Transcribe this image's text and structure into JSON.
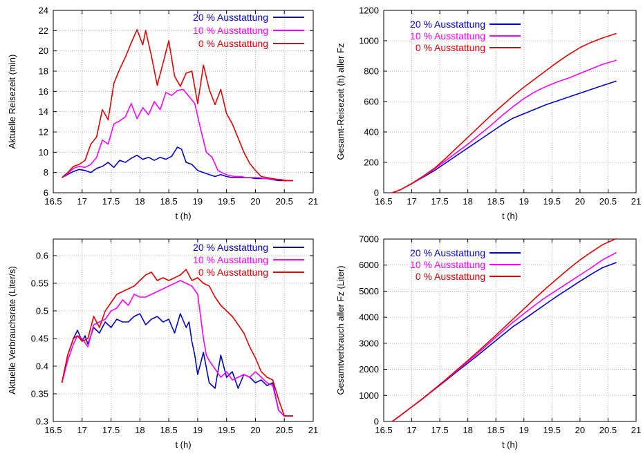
{
  "colors": {
    "s20": "#0000c8",
    "s10": "#ff00ff",
    "s0": "#e00000",
    "grid": "#9a9a9a",
    "axis": "#000000"
  },
  "legend_labels": [
    "20 % Ausstattung",
    "10 % Ausstattung",
    "0 % Ausstattung"
  ],
  "chart_data": [
    {
      "type": "line",
      "xlabel": "t (h)",
      "ylabel": "Aktuelle Reisezeit (min)",
      "xlim": [
        16.5,
        21
      ],
      "ylim": [
        6,
        24
      ],
      "xticks": [
        16.5,
        17,
        17.5,
        18,
        18.5,
        19,
        19.5,
        20,
        20.5,
        21
      ],
      "xtick_labels": [
        "16.5",
        "17",
        "17.5",
        "18",
        "18.5",
        "19",
        "19.5",
        "20",
        "20.5",
        "21"
      ],
      "yticks": [
        6,
        8,
        10,
        12,
        14,
        16,
        18,
        20,
        22,
        24
      ],
      "ytick_labels": [
        "6",
        "8",
        "10",
        "12",
        "14",
        "16",
        "18",
        "20",
        "22",
        "24"
      ],
      "grid": true,
      "legend_position": "top-right",
      "series": [
        {
          "name": "20 % Ausstattung",
          "color_key": "s20",
          "x": [
            16.65,
            16.75,
            16.85,
            16.95,
            17.05,
            17.15,
            17.25,
            17.35,
            17.45,
            17.55,
            17.65,
            17.75,
            17.85,
            17.95,
            18.05,
            18.15,
            18.25,
            18.35,
            18.45,
            18.55,
            18.65,
            18.72,
            18.8,
            18.9,
            19.0,
            19.1,
            19.2,
            19.3,
            19.4,
            19.5,
            19.6,
            19.7,
            19.8,
            19.9,
            20.0,
            20.1,
            20.2,
            20.3,
            20.4,
            20.5,
            20.65
          ],
          "y": [
            7.5,
            7.8,
            8.1,
            8.3,
            8.2,
            8.0,
            8.4,
            8.6,
            9.0,
            8.5,
            9.2,
            9.0,
            9.4,
            9.7,
            9.3,
            9.5,
            9.2,
            9.5,
            9.3,
            9.6,
            10.5,
            10.3,
            9.0,
            8.8,
            8.2,
            8.0,
            7.8,
            7.6,
            7.8,
            7.6,
            7.5,
            7.5,
            7.5,
            7.5,
            7.4,
            7.4,
            7.4,
            7.3,
            7.2,
            7.2,
            7.2
          ]
        },
        {
          "name": "10 % Ausstattung",
          "color_key": "s10",
          "x": [
            16.65,
            16.75,
            16.85,
            16.95,
            17.05,
            17.15,
            17.25,
            17.35,
            17.45,
            17.55,
            17.65,
            17.75,
            17.85,
            17.95,
            18.05,
            18.15,
            18.25,
            18.35,
            18.45,
            18.55,
            18.65,
            18.75,
            18.85,
            18.95,
            19.05,
            19.15,
            19.25,
            19.35,
            19.45,
            19.55,
            19.65,
            19.75,
            19.85,
            19.95,
            20.05,
            20.15,
            20.25,
            20.35,
            20.45,
            20.55,
            20.65
          ],
          "y": [
            7.5,
            7.9,
            8.4,
            8.6,
            8.5,
            8.8,
            9.5,
            11.2,
            10.8,
            12.8,
            13.1,
            13.5,
            14.8,
            13.3,
            14.4,
            13.7,
            15.0,
            14.2,
            15.9,
            15.6,
            16.1,
            16.2,
            15.5,
            14.8,
            12.3,
            10.0,
            9.5,
            8.2,
            7.9,
            7.7,
            7.6,
            7.6,
            7.5,
            7.5,
            7.5,
            7.4,
            7.4,
            7.3,
            7.3,
            7.2,
            7.2
          ]
        },
        {
          "name": "0 % Ausstattung",
          "color_key": "s0",
          "x": [
            16.65,
            16.75,
            16.85,
            16.95,
            17.05,
            17.15,
            17.25,
            17.35,
            17.45,
            17.55,
            17.65,
            17.75,
            17.85,
            17.95,
            18.05,
            18.1,
            18.2,
            18.3,
            18.4,
            18.5,
            18.6,
            18.7,
            18.8,
            18.9,
            19.0,
            19.1,
            19.2,
            19.3,
            19.4,
            19.5,
            19.6,
            19.7,
            19.8,
            19.9,
            20.0,
            20.1,
            20.2,
            20.3,
            20.4,
            20.5,
            20.65
          ],
          "y": [
            7.5,
            8.0,
            8.6,
            8.8,
            9.2,
            10.8,
            11.5,
            14.2,
            13.2,
            16.8,
            18.2,
            19.4,
            20.8,
            22.1,
            20.6,
            22.0,
            19.5,
            16.6,
            18.8,
            21.0,
            17.5,
            16.5,
            17.8,
            18.0,
            14.8,
            18.6,
            16.2,
            14.7,
            16.2,
            13.8,
            12.8,
            11.4,
            10.0,
            8.9,
            8.2,
            7.6,
            7.5,
            7.4,
            7.3,
            7.2,
            7.2
          ]
        }
      ]
    },
    {
      "type": "line",
      "xlabel": "t (h)",
      "ylabel": "Gesamt-Reisezeit (h) aller Fz",
      "xlim": [
        16.5,
        21
      ],
      "ylim": [
        0,
        1200
      ],
      "xticks": [
        16.5,
        17,
        17.5,
        18,
        18.5,
        19,
        19.5,
        20,
        20.5,
        21
      ],
      "xtick_labels": [
        "16.5",
        "17",
        "17.5",
        "18",
        "18.5",
        "19",
        "19.5",
        "20",
        "20.5",
        "21"
      ],
      "yticks": [
        0,
        200,
        400,
        600,
        800,
        1000,
        1200
      ],
      "ytick_labels": [
        "0",
        "200",
        "400",
        "600",
        "800",
        "1000",
        "1200"
      ],
      "grid": true,
      "legend_position": "top-left",
      "series": [
        {
          "name": "20 % Ausstattung",
          "color_key": "s20",
          "x": [
            16.65,
            16.8,
            17.0,
            17.2,
            17.4,
            17.6,
            17.8,
            18.0,
            18.2,
            18.4,
            18.6,
            18.8,
            19.0,
            19.2,
            19.4,
            19.6,
            19.8,
            20.0,
            20.2,
            20.4,
            20.65
          ],
          "y": [
            0,
            20,
            60,
            102,
            145,
            195,
            245,
            295,
            345,
            395,
            445,
            490,
            520,
            550,
            580,
            605,
            630,
            655,
            680,
            705,
            735
          ]
        },
        {
          "name": "10 % Ausstattung",
          "color_key": "s10",
          "x": [
            16.65,
            16.8,
            17.0,
            17.2,
            17.4,
            17.6,
            17.8,
            18.0,
            18.2,
            18.4,
            18.6,
            18.8,
            19.0,
            19.2,
            19.4,
            19.6,
            19.8,
            20.0,
            20.2,
            20.4,
            20.65
          ],
          "y": [
            0,
            20,
            60,
            105,
            155,
            210,
            265,
            320,
            380,
            440,
            505,
            565,
            620,
            665,
            700,
            730,
            755,
            785,
            815,
            845,
            872
          ]
        },
        {
          "name": "0 % Ausstattung",
          "color_key": "s0",
          "x": [
            16.65,
            16.8,
            17.0,
            17.2,
            17.4,
            17.6,
            17.8,
            18.0,
            18.2,
            18.4,
            18.6,
            18.8,
            19.0,
            19.2,
            19.4,
            19.6,
            19.8,
            20.0,
            20.2,
            20.4,
            20.65
          ],
          "y": [
            0,
            20,
            62,
            108,
            160,
            225,
            295,
            365,
            435,
            505,
            570,
            635,
            695,
            750,
            805,
            860,
            910,
            955,
            990,
            1018,
            1048
          ]
        }
      ]
    },
    {
      "type": "line",
      "xlabel": "t (h)",
      "ylabel": "Aktuelle Verbrauchsrate (Liter/s)",
      "xlim": [
        16.5,
        21
      ],
      "ylim": [
        0.3,
        0.63
      ],
      "xticks": [
        16.5,
        17,
        17.5,
        18,
        18.5,
        19,
        19.5,
        20,
        20.5,
        21
      ],
      "xtick_labels": [
        "16.5",
        "17",
        "17.5",
        "18",
        "18.5",
        "19",
        "19.5",
        "20",
        "20.5",
        "21"
      ],
      "yticks": [
        0.3,
        0.35,
        0.4,
        0.45,
        0.5,
        0.55,
        0.6
      ],
      "ytick_labels": [
        "0.3",
        "0.35",
        "0.4",
        "0.45",
        "0.5",
        "0.55",
        "0.6"
      ],
      "grid": true,
      "legend_position": "top-right",
      "series": [
        {
          "name": "20 % Ausstattung",
          "color_key": "s20",
          "x": [
            16.65,
            16.75,
            16.85,
            16.92,
            17.0,
            17.05,
            17.1,
            17.2,
            17.3,
            17.4,
            17.5,
            17.6,
            17.7,
            17.8,
            17.9,
            18.0,
            18.1,
            18.2,
            18.3,
            18.4,
            18.5,
            18.6,
            18.7,
            18.8,
            18.85,
            18.9,
            18.95,
            19.0,
            19.05,
            19.1,
            19.2,
            19.3,
            19.4,
            19.5,
            19.6,
            19.7,
            19.8,
            19.9,
            20.0,
            20.1,
            20.2,
            20.3,
            20.4,
            20.5,
            20.65
          ],
          "y": [
            0.37,
            0.42,
            0.45,
            0.465,
            0.445,
            0.455,
            0.44,
            0.47,
            0.46,
            0.48,
            0.47,
            0.485,
            0.48,
            0.48,
            0.49,
            0.495,
            0.475,
            0.485,
            0.49,
            0.48,
            0.485,
            0.46,
            0.495,
            0.47,
            0.48,
            0.445,
            0.42,
            0.385,
            0.405,
            0.425,
            0.37,
            0.36,
            0.42,
            0.38,
            0.39,
            0.36,
            0.385,
            0.38,
            0.37,
            0.375,
            0.365,
            0.37,
            0.32,
            0.31,
            0.31
          ]
        },
        {
          "name": "10 % Ausstattung",
          "color_key": "s10",
          "x": [
            16.65,
            16.75,
            16.85,
            16.92,
            17.0,
            17.1,
            17.2,
            17.3,
            17.4,
            17.5,
            17.6,
            17.7,
            17.8,
            17.9,
            18.0,
            18.1,
            18.2,
            18.3,
            18.4,
            18.5,
            18.6,
            18.7,
            18.8,
            18.9,
            19.0,
            19.05,
            19.1,
            19.15,
            19.2,
            19.3,
            19.4,
            19.5,
            19.6,
            19.7,
            19.8,
            19.9,
            20.0,
            20.1,
            20.2,
            20.3,
            20.4,
            20.5,
            20.65
          ],
          "y": [
            0.37,
            0.41,
            0.44,
            0.455,
            0.45,
            0.435,
            0.475,
            0.48,
            0.485,
            0.5,
            0.505,
            0.52,
            0.51,
            0.53,
            0.525,
            0.525,
            0.53,
            0.535,
            0.54,
            0.545,
            0.55,
            0.555,
            0.55,
            0.545,
            0.53,
            0.49,
            0.45,
            0.42,
            0.41,
            0.395,
            0.38,
            0.39,
            0.375,
            0.38,
            0.385,
            0.38,
            0.39,
            0.38,
            0.37,
            0.365,
            0.32,
            0.31,
            0.31
          ]
        },
        {
          "name": "0 % Ausstattung",
          "color_key": "s0",
          "x": [
            16.65,
            16.75,
            16.85,
            16.92,
            17.0,
            17.1,
            17.2,
            17.3,
            17.4,
            17.5,
            17.6,
            17.7,
            17.8,
            17.9,
            18.0,
            18.1,
            18.2,
            18.3,
            18.4,
            18.5,
            18.6,
            18.7,
            18.8,
            18.9,
            19.0,
            19.1,
            19.2,
            19.3,
            19.4,
            19.5,
            19.6,
            19.7,
            19.8,
            19.9,
            20.0,
            20.1,
            20.2,
            20.3,
            20.4,
            20.5,
            20.65
          ],
          "y": [
            0.37,
            0.42,
            0.45,
            0.455,
            0.445,
            0.45,
            0.49,
            0.47,
            0.5,
            0.515,
            0.53,
            0.535,
            0.54,
            0.545,
            0.555,
            0.565,
            0.57,
            0.555,
            0.56,
            0.555,
            0.56,
            0.565,
            0.575,
            0.555,
            0.56,
            0.55,
            0.545,
            0.525,
            0.51,
            0.5,
            0.49,
            0.475,
            0.46,
            0.435,
            0.415,
            0.39,
            0.38,
            0.375,
            0.34,
            0.31,
            0.31
          ]
        }
      ]
    },
    {
      "type": "line",
      "xlabel": "t (h)",
      "ylabel": "Gesamtverbrauch aller Fz (Liter)",
      "xlim": [
        16.5,
        21
      ],
      "ylim": [
        0,
        7000
      ],
      "xticks": [
        16.5,
        17,
        17.5,
        18,
        18.5,
        19,
        19.5,
        20,
        20.5,
        21
      ],
      "xtick_labels": [
        "16.5",
        "17",
        "17.5",
        "18",
        "18.5",
        "19",
        "19.5",
        "20",
        "20.5",
        "21"
      ],
      "yticks": [
        0,
        1000,
        2000,
        3000,
        4000,
        5000,
        6000,
        7000
      ],
      "ytick_labels": [
        "0",
        "1000",
        "2000",
        "3000",
        "4000",
        "5000",
        "6000",
        "7000"
      ],
      "grid": true,
      "legend_position": "top-left",
      "series": [
        {
          "name": "20 % Ausstattung",
          "color_key": "s20",
          "x": [
            16.65,
            16.8,
            17.0,
            17.2,
            17.4,
            17.6,
            17.8,
            18.0,
            18.2,
            18.4,
            18.6,
            18.8,
            19.0,
            19.2,
            19.4,
            19.6,
            19.8,
            20.0,
            20.2,
            20.4,
            20.65
          ],
          "y": [
            0,
            230,
            560,
            880,
            1220,
            1560,
            1900,
            2240,
            2580,
            2930,
            3280,
            3630,
            3920,
            4220,
            4520,
            4820,
            5100,
            5380,
            5650,
            5900,
            6100
          ]
        },
        {
          "name": "10 % Ausstattung",
          "color_key": "s10",
          "x": [
            16.65,
            16.8,
            17.0,
            17.2,
            17.4,
            17.6,
            17.8,
            18.0,
            18.2,
            18.4,
            18.6,
            18.8,
            19.0,
            19.2,
            19.4,
            19.6,
            19.8,
            20.0,
            20.2,
            20.4,
            20.65
          ],
          "y": [
            0,
            230,
            560,
            880,
            1230,
            1580,
            1940,
            2300,
            2660,
            3040,
            3420,
            3800,
            4140,
            4470,
            4780,
            5060,
            5340,
            5620,
            5900,
            6200,
            6480
          ]
        },
        {
          "name": "0 % Ausstattung",
          "color_key": "s0",
          "x": [
            16.65,
            16.8,
            17.0,
            17.2,
            17.4,
            17.6,
            17.8,
            18.0,
            18.2,
            18.4,
            18.6,
            18.8,
            19.0,
            19.2,
            19.4,
            19.6,
            19.8,
            20.0,
            20.2,
            20.4,
            20.65
          ],
          "y": [
            0,
            230,
            560,
            890,
            1240,
            1600,
            1970,
            2340,
            2720,
            3110,
            3510,
            3920,
            4320,
            4730,
            5120,
            5490,
            5860,
            6200,
            6500,
            6780,
            7020
          ]
        }
      ]
    }
  ]
}
